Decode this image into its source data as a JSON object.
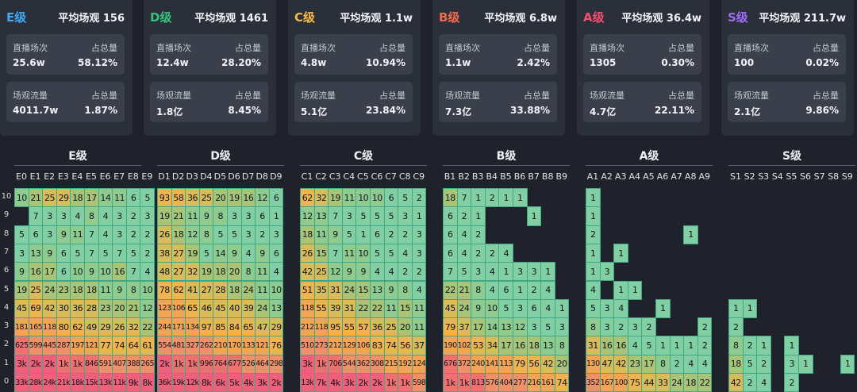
{
  "colors": {
    "E": "#3fa9f5",
    "D": "#32c27a",
    "C": "#f4b942",
    "B": "#f26b4f",
    "A": "#f0506e",
    "S": "#9b6cf5"
  },
  "cards": [
    {
      "grade": "E级",
      "avg": "平均场观 156",
      "count_label": "直播场次",
      "count": "25.6w",
      "share_label": "占总量",
      "count_share": "58.12%",
      "flow_label": "场观流量",
      "flow": "4011.7w",
      "flow_share": "1.87%"
    },
    {
      "grade": "D级",
      "avg": "平均场观 1461",
      "count_label": "直播场次",
      "count": "12.4w",
      "share_label": "占总量",
      "count_share": "28.20%",
      "flow_label": "场观流量",
      "flow": "1.8亿",
      "flow_share": "8.45%"
    },
    {
      "grade": "C级",
      "avg": "平均场观 1.1w",
      "count_label": "直播场次",
      "count": "4.8w",
      "share_label": "占总量",
      "count_share": "10.94%",
      "flow_label": "场观流量",
      "flow": "5.1亿",
      "flow_share": "23.84%"
    },
    {
      "grade": "B级",
      "avg": "平均场观 6.8w",
      "count_label": "直播场次",
      "count": "1.1w",
      "share_label": "占总量",
      "count_share": "2.42%",
      "flow_label": "场观流量",
      "flow": "7.3亿",
      "flow_share": "33.88%"
    },
    {
      "grade": "A级",
      "avg": "平均场观 36.4w",
      "count_label": "直播场次",
      "count": "1305",
      "share_label": "占总量",
      "count_share": "0.30%",
      "flow_label": "场观流量",
      "flow": "4.7亿",
      "flow_share": "22.11%"
    },
    {
      "grade": "S级",
      "avg": "平均场观 211.7w",
      "count_label": "直播场次",
      "count": "100",
      "share_label": "占总量",
      "count_share": "0.02%",
      "flow_label": "场观流量",
      "flow": "2.1亿",
      "flow_share": "9.86%"
    }
  ],
  "chart_data": {
    "type": "heatmap",
    "rows": [
      "10",
      "9",
      "8",
      "7",
      "6",
      "5",
      "4",
      "3",
      "2",
      "1",
      "0"
    ],
    "grids": [
      {
        "title": "E级",
        "columns": [
          "E0",
          "E1",
          "E2",
          "E3",
          "E4",
          "E5",
          "E6",
          "E7",
          "E8",
          "E9"
        ],
        "cells": [
          [
            "10",
            "21",
            "25",
            "29",
            "18",
            "17",
            "14",
            "11",
            "6",
            "5"
          ],
          [
            "",
            "7",
            "3",
            "3",
            "4",
            "8",
            "4",
            "3",
            "2",
            "3"
          ],
          [
            "5",
            "6",
            "3",
            "9",
            "11",
            "7",
            "4",
            "3",
            "2",
            "2"
          ],
          [
            "3",
            "13",
            "9",
            "6",
            "5",
            "7",
            "5",
            "7",
            "5",
            "2"
          ],
          [
            "9",
            "16",
            "17",
            "6",
            "10",
            "9",
            "10",
            "16",
            "7",
            "4"
          ],
          [
            "19",
            "25",
            "24",
            "23",
            "18",
            "18",
            "11",
            "9",
            "8",
            "10"
          ],
          [
            "45",
            "69",
            "42",
            "30",
            "36",
            "28",
            "23",
            "20",
            "21",
            "12"
          ],
          [
            "181",
            "165",
            "118",
            "80",
            "62",
            "49",
            "29",
            "26",
            "32",
            "22"
          ],
          [
            "625",
            "599",
            "445",
            "287",
            "197",
            "121",
            "77",
            "74",
            "64",
            "61"
          ],
          [
            "3k",
            "2k",
            "2k",
            "1k",
            "1k",
            "846",
            "591",
            "407",
            "388",
            "265"
          ],
          [
            "33k",
            "28k",
            "24k",
            "21k",
            "18k",
            "15k",
            "13k",
            "11k",
            "9k",
            "8k"
          ]
        ]
      },
      {
        "title": "D级",
        "columns": [
          "D1",
          "D2",
          "D3",
          "D4",
          "D5",
          "D6",
          "D7",
          "D8",
          "D9"
        ],
        "cells": [
          [
            "93",
            "58",
            "36",
            "25",
            "20",
            "19",
            "16",
            "12",
            "6"
          ],
          [
            "19",
            "21",
            "11",
            "9",
            "8",
            "3",
            "3",
            "6",
            "1"
          ],
          [
            "26",
            "18",
            "12",
            "8",
            "5",
            "5",
            "3",
            "2",
            "3"
          ],
          [
            "38",
            "27",
            "19",
            "5",
            "14",
            "9",
            "4",
            "9",
            "6"
          ],
          [
            "48",
            "27",
            "32",
            "19",
            "18",
            "20",
            "8",
            "11",
            "4"
          ],
          [
            "78",
            "62",
            "41",
            "27",
            "28",
            "18",
            "24",
            "11",
            "10"
          ],
          [
            "123",
            "106",
            "65",
            "46",
            "45",
            "40",
            "39",
            "24",
            "13"
          ],
          [
            "244",
            "171",
            "134",
            "97",
            "85",
            "84",
            "65",
            "47",
            "29"
          ],
          [
            "554",
            "481",
            "327",
            "262",
            "210",
            "170",
            "133",
            "121",
            "76"
          ],
          [
            "2k",
            "1k",
            "1k",
            "996",
            "764",
            "677",
            "526",
            "464",
            "298"
          ],
          [
            "36k",
            "19k",
            "12k",
            "8k",
            "6k",
            "5k",
            "4k",
            "3k",
            "2k"
          ]
        ]
      },
      {
        "title": "C级",
        "columns": [
          "C1",
          "C2",
          "C3",
          "C4",
          "C5",
          "C6",
          "C7",
          "C8",
          "C9"
        ],
        "cells": [
          [
            "62",
            "32",
            "19",
            "11",
            "10",
            "10",
            "6",
            "5",
            "2"
          ],
          [
            "12",
            "13",
            "7",
            "3",
            "5",
            "5",
            "5",
            "3",
            "1"
          ],
          [
            "18",
            "11",
            "9",
            "5",
            "1",
            "6",
            "2",
            "2",
            "3"
          ],
          [
            "26",
            "15",
            "7",
            "11",
            "10",
            "5",
            "5",
            "4",
            "3"
          ],
          [
            "42",
            "25",
            "12",
            "9",
            "9",
            "4",
            "4",
            "2",
            "2"
          ],
          [
            "51",
            "35",
            "31",
            "24",
            "15",
            "13",
            "9",
            "8",
            "4"
          ],
          [
            "118",
            "55",
            "39",
            "31",
            "22",
            "22",
            "11",
            "15",
            "11"
          ],
          [
            "212",
            "118",
            "95",
            "55",
            "57",
            "36",
            "25",
            "20",
            "11"
          ],
          [
            "510",
            "273",
            "212",
            "129",
            "106",
            "83",
            "74",
            "56",
            "37"
          ],
          [
            "3k",
            "1k",
            "706",
            "544",
            "362",
            "308",
            "215",
            "192",
            "124"
          ],
          [
            "13k",
            "7k",
            "4k",
            "3k",
            "2k",
            "2k",
            "1k",
            "1k",
            "598"
          ]
        ]
      },
      {
        "title": "B级",
        "columns": [
          "B1",
          "B2",
          "B3",
          "B4",
          "B5",
          "B6",
          "B7",
          "B8",
          "B9"
        ],
        "cells": [
          [
            "18",
            "7",
            "1",
            "2",
            "1",
            "1",
            "",
            "",
            ""
          ],
          [
            "6",
            "2",
            "1",
            "",
            "",
            "",
            "1",
            "",
            ""
          ],
          [
            "6",
            "4",
            "2",
            "",
            "",
            "",
            "",
            "",
            ""
          ],
          [
            "6",
            "4",
            "2",
            "2",
            "4",
            "",
            "",
            "",
            ""
          ],
          [
            "7",
            "5",
            "3",
            "4",
            "1",
            "3",
            "3",
            "1",
            ""
          ],
          [
            "22",
            "21",
            "8",
            "4",
            "6",
            "1",
            "2",
            "4",
            ""
          ],
          [
            "45",
            "24",
            "9",
            "10",
            "5",
            "3",
            "6",
            "4",
            "1"
          ],
          [
            "79",
            "37",
            "17",
            "14",
            "13",
            "12",
            "3",
            "5",
            "3"
          ],
          [
            "190",
            "102",
            "53",
            "34",
            "17",
            "16",
            "18",
            "13",
            "8"
          ],
          [
            "676",
            "372",
            "240",
            "141",
            "113",
            "79",
            "56",
            "42",
            "20"
          ],
          [
            "1k",
            "1k",
            "813",
            "576",
            "404",
            "277",
            "216",
            "161",
            "74"
          ]
        ]
      },
      {
        "title": "A级",
        "columns": [
          "A1",
          "A2",
          "A3",
          "A4",
          "A5",
          "A6",
          "A7",
          "A8",
          "A9"
        ],
        "cells": [
          [
            "1",
            "",
            "",
            "",
            "",
            "",
            "",
            "",
            ""
          ],
          [
            "1",
            "",
            "",
            "",
            "",
            "",
            "",
            "",
            ""
          ],
          [
            "2",
            "",
            "",
            "",
            "",
            "",
            "",
            "1",
            ""
          ],
          [
            "1",
            "",
            "1",
            "",
            "",
            "",
            "",
            "",
            ""
          ],
          [
            "1",
            "3",
            "",
            "",
            "",
            "",
            "",
            "",
            ""
          ],
          [
            "4",
            "",
            "1",
            "1",
            "",
            "",
            "",
            "",
            ""
          ],
          [
            "5",
            "3",
            "4",
            "",
            "",
            "1",
            "",
            "",
            ""
          ],
          [
            "8",
            "3",
            "2",
            "3",
            "2",
            "",
            "",
            "",
            "2"
          ],
          [
            "31",
            "16",
            "16",
            "4",
            "5",
            "1",
            "1",
            "1",
            "2"
          ],
          [
            "130",
            "47",
            "42",
            "23",
            "17",
            "8",
            "2",
            "4",
            "4"
          ],
          [
            "352",
            "167",
            "100",
            "75",
            "44",
            "33",
            "24",
            "18",
            "22"
          ]
        ]
      },
      {
        "title": "S级",
        "columns": [
          "S1",
          "S2",
          "S3",
          "S4",
          "S5",
          "S6",
          "S7",
          "S8",
          "S9"
        ],
        "cells": [
          [
            "",
            "",
            "",
            "",
            "",
            "",
            "",
            "",
            ""
          ],
          [
            "",
            "",
            "",
            "",
            "",
            "",
            "",
            "",
            ""
          ],
          [
            "",
            "",
            "",
            "",
            "",
            "",
            "",
            "",
            ""
          ],
          [
            "",
            "",
            "",
            "",
            "",
            "",
            "",
            "",
            ""
          ],
          [
            "",
            "",
            "",
            "",
            "",
            "",
            "",
            "",
            ""
          ],
          [
            "",
            "",
            "",
            "",
            "",
            "",
            "",
            "",
            ""
          ],
          [
            "1",
            "1",
            "",
            "",
            "",
            "",
            "",
            "",
            ""
          ],
          [
            "2",
            "",
            "",
            "",
            "",
            "",
            "",
            "",
            ""
          ],
          [
            "8",
            "2",
            "1",
            "",
            "1",
            "",
            "",
            "",
            ""
          ],
          [
            "18",
            "5",
            "2",
            "",
            "3",
            "1",
            "",
            "",
            "1"
          ],
          [
            "42",
            "2",
            "4",
            "",
            "2",
            "",
            "",
            "",
            ""
          ]
        ]
      }
    ]
  }
}
